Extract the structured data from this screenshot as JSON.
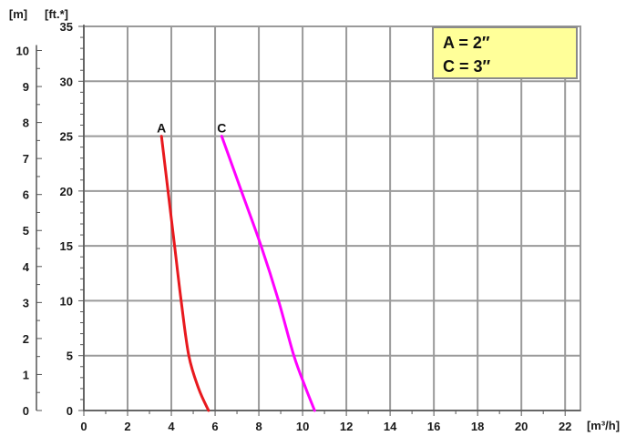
{
  "chart_data": {
    "type": "line",
    "x_unit_label": "[m³/h]",
    "y_unit_label": "[ft.*]",
    "y2_unit_label": "[m]",
    "x_ticks": [
      0,
      2,
      4,
      6,
      8,
      10,
      12,
      14,
      16,
      18,
      20,
      22
    ],
    "y_ticks": [
      0,
      5,
      10,
      15,
      20,
      25,
      30,
      35
    ],
    "y2_ticks": [
      0,
      1,
      2,
      3,
      4,
      5,
      6,
      7,
      8,
      9,
      10
    ],
    "xlim": [
      0,
      22.7
    ],
    "ylim": [
      0,
      35
    ],
    "y2lim": [
      0,
      10.67
    ],
    "grid": true,
    "legend_lines": [
      "A = 2″",
      "C = 3″"
    ],
    "series": [
      {
        "name": "A",
        "color": "#e8191e",
        "points": [
          [
            3.55,
            25
          ],
          [
            3.85,
            20
          ],
          [
            4.15,
            15
          ],
          [
            4.45,
            10
          ],
          [
            4.8,
            5
          ],
          [
            5.25,
            2
          ],
          [
            5.7,
            0
          ]
        ]
      },
      {
        "name": "C",
        "color": "#ff00ff",
        "points": [
          [
            6.3,
            25
          ],
          [
            7.2,
            20
          ],
          [
            8.1,
            15
          ],
          [
            8.9,
            10
          ],
          [
            9.6,
            5
          ],
          [
            10.15,
            2
          ],
          [
            10.55,
            0
          ]
        ]
      }
    ]
  }
}
